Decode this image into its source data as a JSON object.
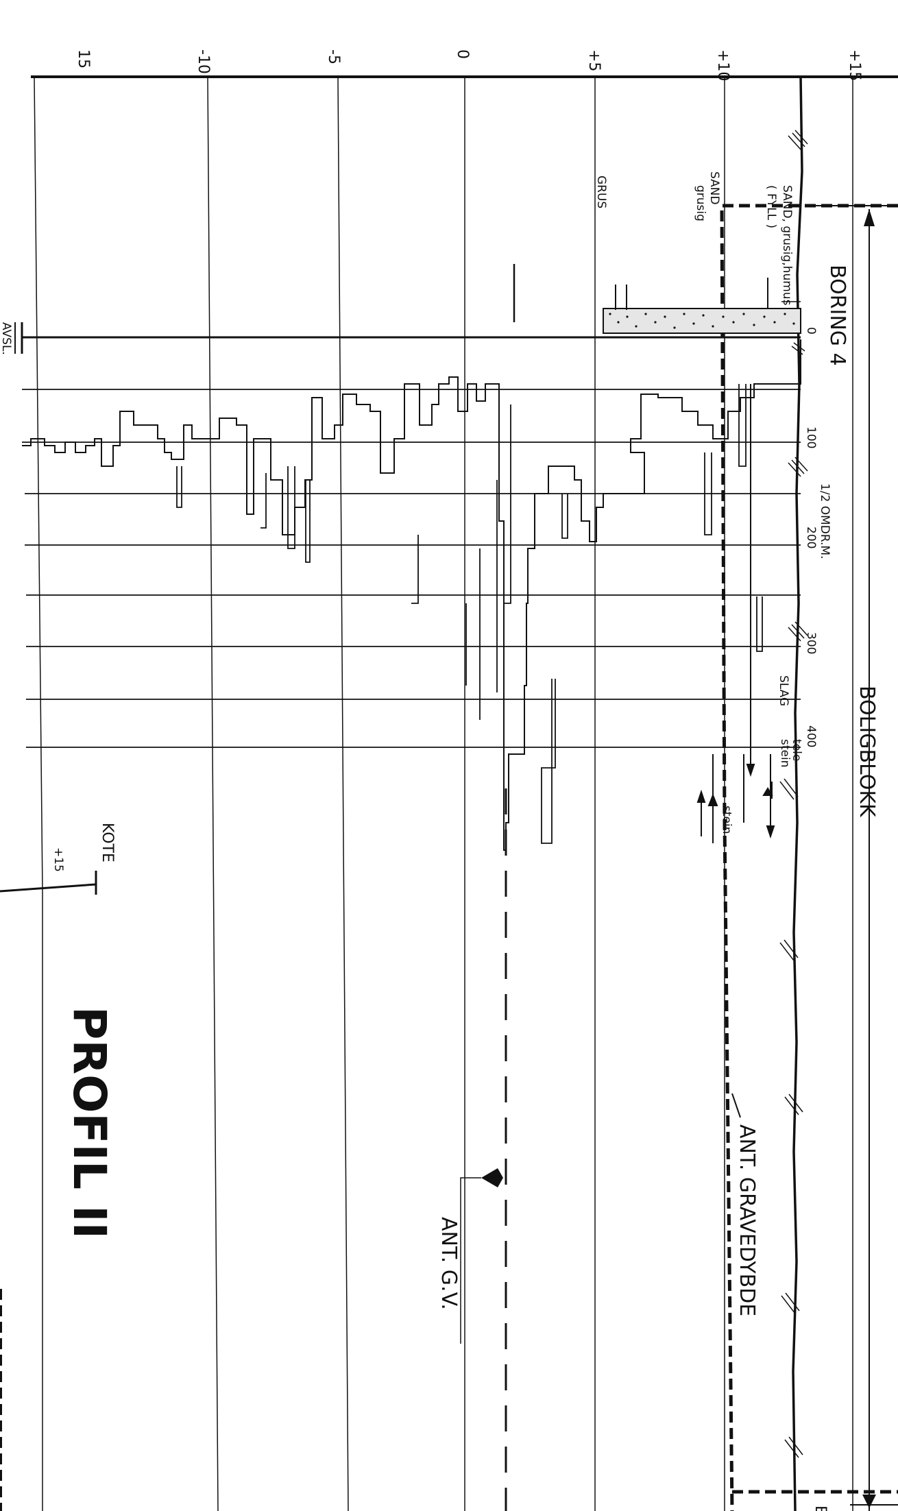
{
  "scale_ticks": [
    "+15",
    "+10",
    "+5",
    "0",
    "-5",
    "-10",
    "15"
  ],
  "kote_scale": {
    "label": "KOTE",
    "value": "+15"
  },
  "titles": {
    "building": "BOLIGBLOKK",
    "boring": "BORING 4",
    "profile": "PROFIL II",
    "corner_letter": "B"
  },
  "axis": {
    "label": "1/2 OMDR.M.",
    "ticks": [
      "0",
      "100",
      "200",
      "300",
      "400"
    ]
  },
  "soil_labels": [
    "SAND, grusig,humus",
    "( FYLL )",
    "SAND",
    "grusig",
    "GRUS",
    "SLAG",
    "tele",
    "stein",
    "stein"
  ],
  "annotations": {
    "dig_depth": "ANT. GRAVEDYBDE",
    "groundwater": "ANT. G.V.",
    "stop": "AVSL."
  }
}
